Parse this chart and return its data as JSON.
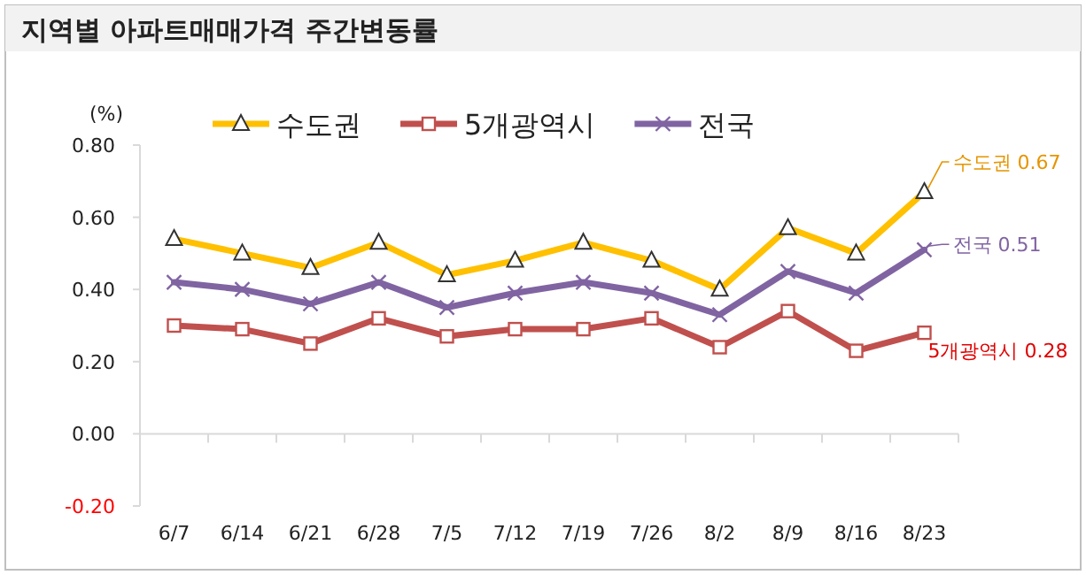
{
  "chart_data": {
    "type": "line",
    "title": "지역별 아파트매매가격 주간변동률",
    "ylabel": "(%)",
    "categories": [
      "6/7",
      "6/14",
      "6/21",
      "6/28",
      "7/5",
      "7/12",
      "7/19",
      "7/26",
      "8/2",
      "8/9",
      "8/16",
      "8/23"
    ],
    "series": [
      {
        "name": "수도권",
        "color": "#ffc000",
        "marker": "triangle",
        "values": [
          0.54,
          0.5,
          0.46,
          0.53,
          0.44,
          0.48,
          0.53,
          0.48,
          0.4,
          0.57,
          0.5,
          0.67
        ]
      },
      {
        "name": "5개광역시",
        "color": "#c0504d",
        "marker": "square",
        "values": [
          0.3,
          0.29,
          0.25,
          0.32,
          0.27,
          0.29,
          0.29,
          0.32,
          0.24,
          0.34,
          0.23,
          0.28
        ]
      },
      {
        "name": "전국",
        "color": "#8064a2",
        "marker": "cross",
        "values": [
          0.42,
          0.4,
          0.36,
          0.42,
          0.35,
          0.39,
          0.42,
          0.39,
          0.33,
          0.45,
          0.39,
          0.51
        ]
      }
    ],
    "ylim": [
      -0.2,
      0.8
    ],
    "yticks": [
      {
        "value": -0.2,
        "label": "-0.20"
      },
      {
        "value": 0,
        "label": "0.00"
      },
      {
        "value": 0.2,
        "label": "0.20"
      },
      {
        "value": 0.4,
        "label": "0.40"
      },
      {
        "value": 0.6,
        "label": "0.60"
      },
      {
        "value": 0.8,
        "label": "0.80"
      }
    ],
    "annotations": [
      {
        "text": "수도권 0.67",
        "x": "8/23",
        "y": 0.67
      },
      {
        "text": "전국 0.51",
        "x": "8/23",
        "y": 0.51
      },
      {
        "text": "5개광역시 0.28",
        "x": "8/23",
        "y": 0.28
      }
    ],
    "legend": "top"
  }
}
